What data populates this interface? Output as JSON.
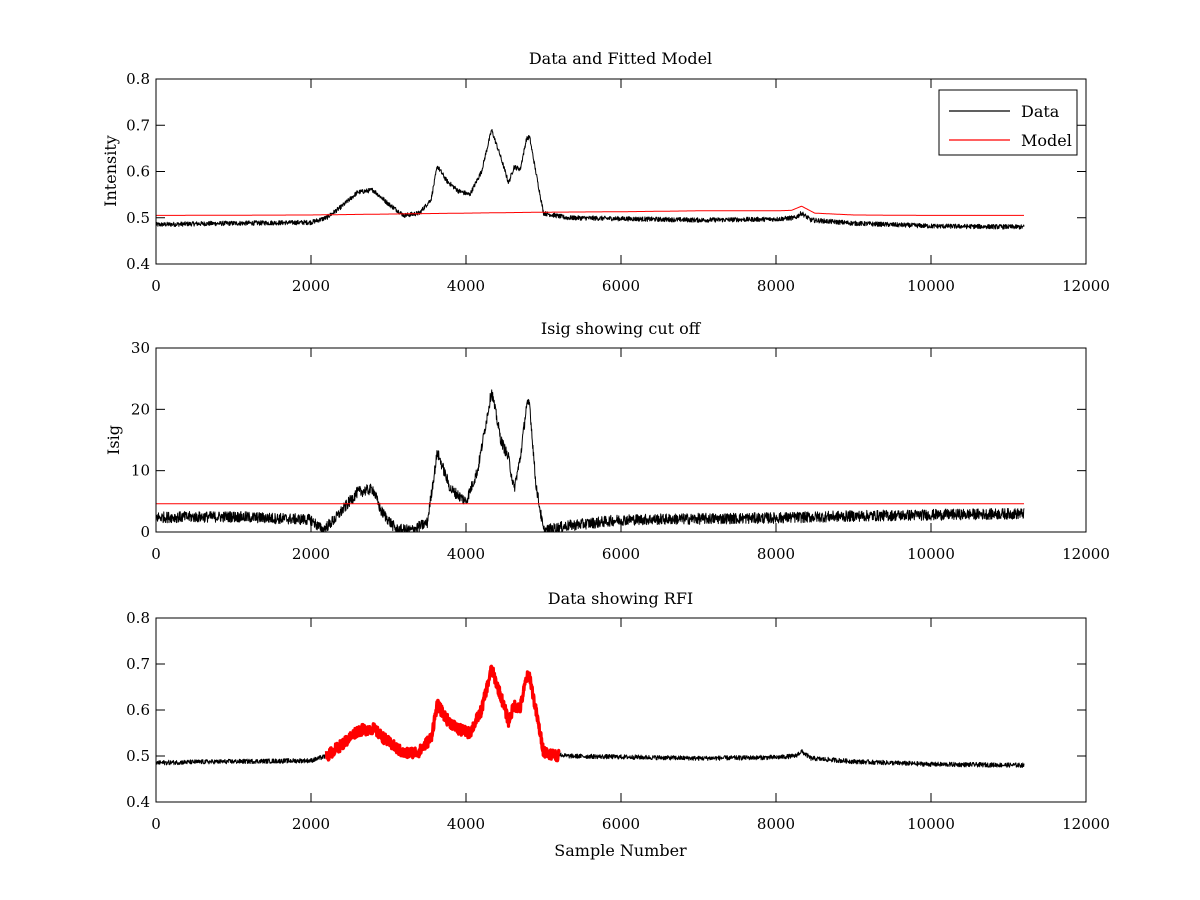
{
  "chart_data": [
    {
      "type": "line",
      "title": "Data and Fitted Model",
      "xlabel": "",
      "ylabel": "Intensity",
      "xlim": [
        0,
        12000
      ],
      "ylim": [
        0.4,
        0.8
      ],
      "xticks": [
        "0",
        "2000",
        "4000",
        "6000",
        "8000",
        "10000",
        "12000"
      ],
      "yticks": [
        "0.4",
        "0.5",
        "0.6",
        "0.7",
        "0.8"
      ],
      "legend": {
        "placement": "top-right",
        "entries": [
          "Data",
          "Model"
        ]
      },
      "series": [
        {
          "name": "Data",
          "color": "#000000",
          "noise": 0.005,
          "x": [
            0,
            500,
            1000,
            1500,
            2000,
            2200,
            2400,
            2600,
            2800,
            3000,
            3200,
            3400,
            3550,
            3630,
            3750,
            3900,
            4050,
            4200,
            4330,
            4450,
            4550,
            4620,
            4700,
            4780,
            4820,
            4900,
            5000,
            5300,
            6000,
            7000,
            8000,
            8250,
            8330,
            8450,
            9000,
            10000,
            11200
          ],
          "y": [
            0.485,
            0.487,
            0.488,
            0.489,
            0.49,
            0.5,
            0.525,
            0.555,
            0.56,
            0.53,
            0.505,
            0.51,
            0.54,
            0.612,
            0.58,
            0.558,
            0.55,
            0.6,
            0.69,
            0.63,
            0.575,
            0.61,
            0.605,
            0.67,
            0.675,
            0.6,
            0.51,
            0.5,
            0.498,
            0.495,
            0.497,
            0.5,
            0.51,
            0.495,
            0.488,
            0.482,
            0.48
          ]
        },
        {
          "name": "Model",
          "color": "#ff0000",
          "noise": 0,
          "x": [
            0,
            2000,
            4000,
            5000,
            6000,
            7000,
            8000,
            8200,
            8330,
            8500,
            9000,
            10000,
            11200
          ],
          "y": [
            0.505,
            0.506,
            0.51,
            0.512,
            0.513,
            0.515,
            0.515,
            0.516,
            0.525,
            0.51,
            0.506,
            0.505,
            0.505
          ]
        }
      ]
    },
    {
      "type": "line",
      "title": "Isig showing cut off",
      "xlabel": "",
      "ylabel": "Isig",
      "xlim": [
        0,
        12000
      ],
      "ylim": [
        0,
        30
      ],
      "xticks": [
        "0",
        "2000",
        "4000",
        "6000",
        "8000",
        "10000",
        "12000"
      ],
      "yticks": [
        "0",
        "10",
        "20",
        "30"
      ],
      "series": [
        {
          "color": "#000000",
          "noise": 0.9,
          "x": [
            0,
            1000,
            2000,
            2150,
            2300,
            2500,
            2600,
            2800,
            2900,
            3100,
            3300,
            3500,
            3630,
            3800,
            4000,
            4150,
            4330,
            4450,
            4550,
            4620,
            4700,
            4780,
            4820,
            4900,
            5000,
            5300,
            6000,
            8000,
            9000,
            10000,
            11200
          ],
          "y": [
            2.4,
            2.5,
            2.0,
            0.3,
            2.0,
            5.0,
            6.5,
            7.0,
            3.5,
            0.4,
            0.3,
            1.5,
            13.0,
            7.0,
            5.0,
            10.0,
            23.0,
            15.0,
            12.0,
            7.0,
            12.0,
            20.5,
            21.0,
            8.0,
            0.2,
            1.0,
            2.0,
            2.3,
            2.6,
            2.8,
            3.0
          ]
        },
        {
          "color": "#ff0000",
          "noise": 0,
          "x": [
            0,
            11200
          ],
          "y": [
            4.6,
            4.6
          ]
        }
      ]
    },
    {
      "type": "line",
      "title": "Data showing RFI",
      "xlabel": "Sample Number",
      "ylabel": "",
      "xlim": [
        0,
        12000
      ],
      "ylim": [
        0.4,
        0.8
      ],
      "xticks": [
        "0",
        "2000",
        "4000",
        "6000",
        "8000",
        "10000",
        "12000"
      ],
      "yticks": [
        "0.4",
        "0.5",
        "0.6",
        "0.7",
        "0.8"
      ],
      "series": [
        {
          "color": "#000000",
          "noise": 0.005,
          "x": [
            0,
            500,
            1000,
            1500,
            2000,
            2200,
            2400,
            2600,
            2800,
            3000,
            3200,
            3400,
            3550,
            3630,
            3750,
            3900,
            4050,
            4200,
            4330,
            4450,
            4550,
            4620,
            4700,
            4780,
            4820,
            4900,
            5000,
            5300,
            6000,
            7000,
            8000,
            8250,
            8330,
            8450,
            9000,
            10000,
            11200
          ],
          "y": [
            0.485,
            0.487,
            0.488,
            0.489,
            0.49,
            0.5,
            0.525,
            0.555,
            0.56,
            0.53,
            0.505,
            0.51,
            0.54,
            0.612,
            0.58,
            0.558,
            0.55,
            0.6,
            0.69,
            0.63,
            0.575,
            0.61,
            0.605,
            0.67,
            0.675,
            0.6,
            0.51,
            0.5,
            0.498,
            0.495,
            0.497,
            0.5,
            0.51,
            0.495,
            0.488,
            0.482,
            0.48
          ]
        },
        {
          "color": "#ff0000",
          "noise": 0.012,
          "x": [
            2200,
            2400,
            2600,
            2800,
            3000,
            3200,
            3400,
            3550,
            3630,
            3750,
            3900,
            4050,
            4200,
            4330,
            4450,
            4550,
            4620,
            4700,
            4780,
            4820,
            4900,
            5000,
            5200
          ],
          "y": [
            0.5,
            0.525,
            0.555,
            0.56,
            0.53,
            0.505,
            0.51,
            0.54,
            0.612,
            0.58,
            0.558,
            0.55,
            0.6,
            0.69,
            0.63,
            0.575,
            0.61,
            0.605,
            0.67,
            0.675,
            0.6,
            0.51,
            0.5
          ]
        }
      ]
    }
  ]
}
